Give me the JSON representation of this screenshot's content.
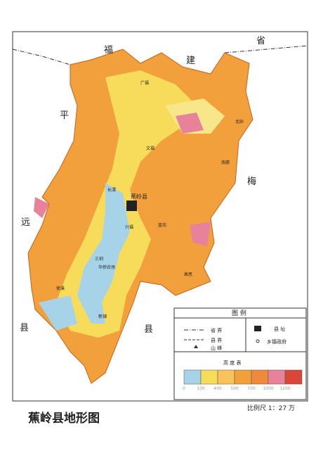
{
  "neighbors": {
    "fujian": [
      "福",
      "建",
      "省"
    ],
    "pingyuan": [
      "平",
      "远",
      "县"
    ],
    "meixian": [
      "梅",
      "县"
    ]
  },
  "places": [
    "广福",
    "北砂",
    "文福",
    "南磜",
    "蕉岭县",
    "长潭",
    "兴福",
    "蓝坊",
    "三圳",
    "华侨农场",
    "徐溪",
    "新铺",
    "高思"
  ],
  "legend": {
    "title": "图  例",
    "items": [
      "省  界",
      "县  界",
      "山  峰",
      "县  址",
      "乡镇政府"
    ],
    "elevation_title": "高 度 表",
    "elevation_labels": [
      "0",
      "100",
      "400",
      "500",
      "700",
      "1000",
      "1200"
    ]
  },
  "scale": "比例尺 1：27 万",
  "title": "蕉岭县地形图"
}
